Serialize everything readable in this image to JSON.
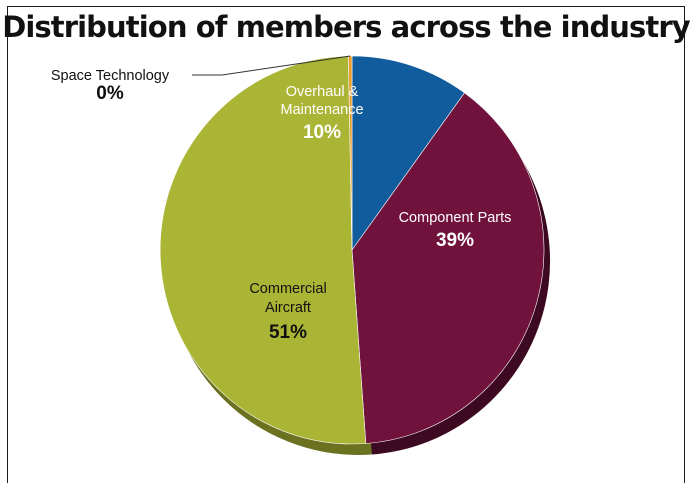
{
  "chart_data": {
    "type": "pie",
    "title": "Distribution of members across the industry",
    "slices": [
      {
        "label": [
          "Overhaul &",
          "Maintenance"
        ],
        "value": 10,
        "value_label": "10%",
        "color": "#115c9c",
        "shade": "#0a3660",
        "text_color": "#ffffff"
      },
      {
        "label": [
          "Component Parts"
        ],
        "value": 39,
        "value_label": "39%",
        "color": "#70123c",
        "shade": "#3d0a22",
        "text_color": "#ffffff"
      },
      {
        "label": [
          "Commercial",
          "Aircraft"
        ],
        "value": 51,
        "value_label": "51%",
        "color": "#aab435",
        "shade": "#6b7220",
        "text_color": "#111111"
      },
      {
        "label": [
          "Space Technology"
        ],
        "value": 0.3,
        "value_label": "0%",
        "color": "#e89a2a",
        "shade": "#a86c18",
        "text_color": "#111111"
      }
    ]
  }
}
